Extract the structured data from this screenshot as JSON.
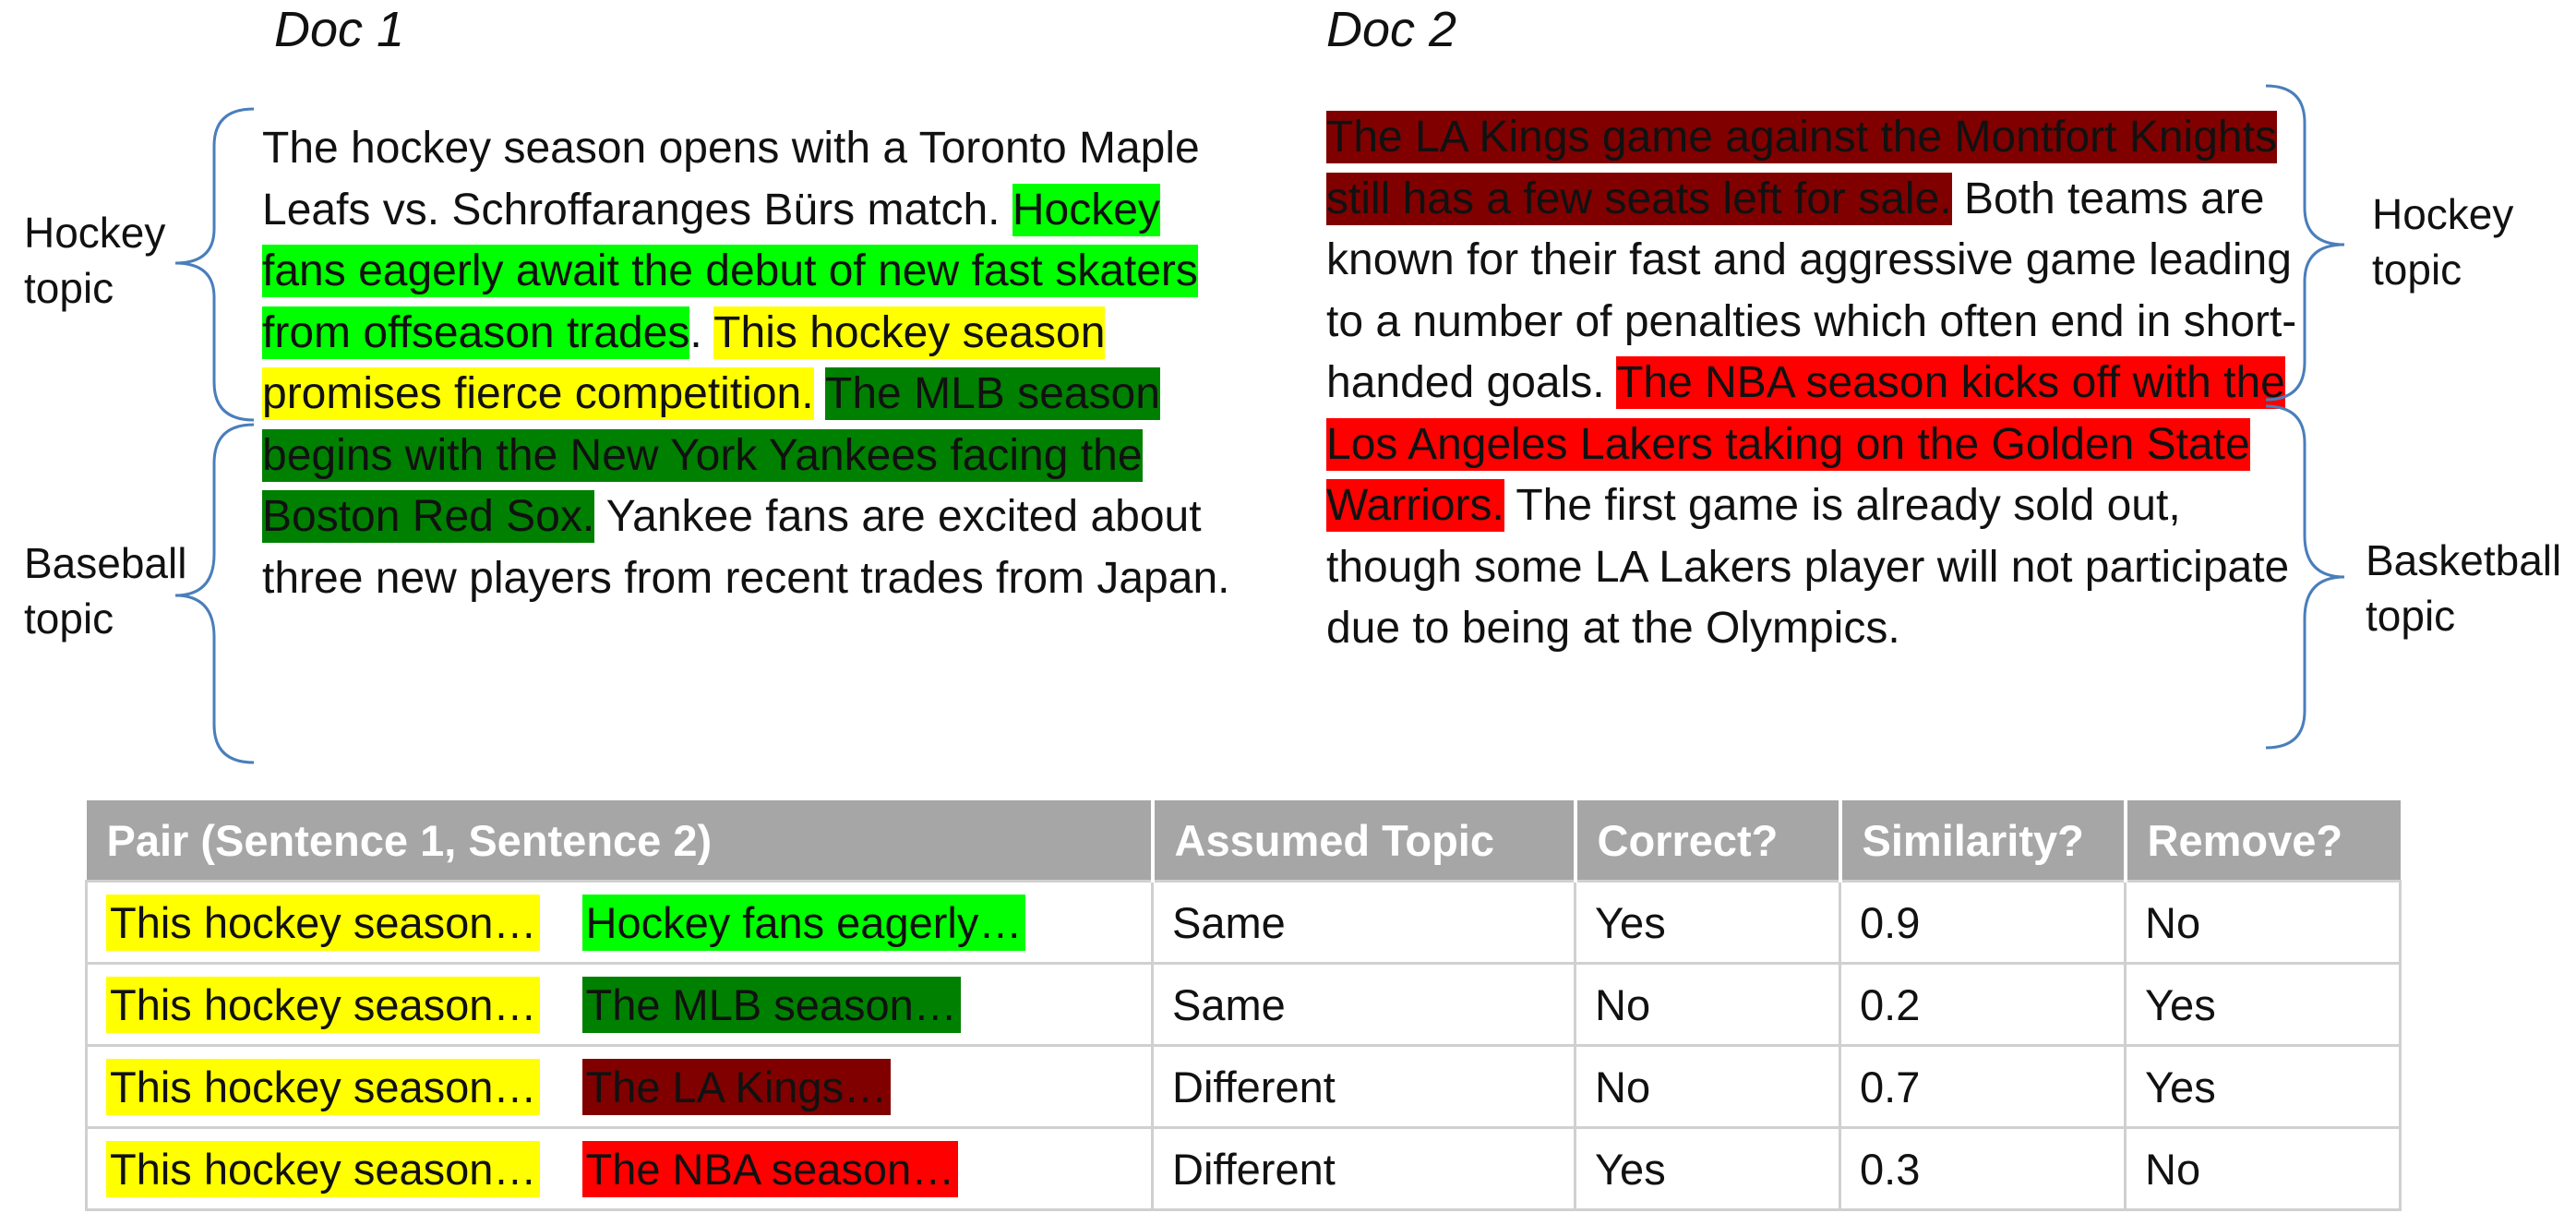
{
  "colors": {
    "yellow": "#ffff00",
    "lime": "#00ff00",
    "green": "#008000",
    "maroon": "#800000",
    "red": "#ff0000",
    "header_gray": "#a6a6a6",
    "brace_blue": "#4a7ebb"
  },
  "doc1": {
    "title": "Doc 1",
    "segments": [
      {
        "text": "The hockey season opens with a Toronto Maple Leafs vs. Schroffaranges Bürs match. ",
        "color": ""
      },
      {
        "text": "Hockey fans eagerly await the debut of new fast skaters from offseason trades",
        "color": "lime"
      },
      {
        "text": ". ",
        "color": ""
      },
      {
        "text": "This hockey season promises fierce competition.",
        "color": "yellow"
      },
      {
        "text": " ",
        "color": ""
      },
      {
        "text": "The MLB season begins with the New York Yankees facing the Boston Red Sox.",
        "color": "green"
      },
      {
        "text": " Yankee fans are excited about three new players from recent trades from Japan.",
        "color": ""
      }
    ],
    "topics": [
      "Hockey topic",
      "Baseball topic"
    ]
  },
  "doc2": {
    "title": "Doc 2",
    "segments": [
      {
        "text": "The LA Kings game against the Montfort Knights still has a few seats left for sale.",
        "color": "maroon"
      },
      {
        "text": " Both teams are known for their fast and aggressive game leading to a number of penalties which often end in short-handed goals. ",
        "color": ""
      },
      {
        "text": "The NBA season kicks off with the Los Angeles Lakers taking on the Golden State Warriors.",
        "color": "red"
      },
      {
        "text": " The first game is already sold out, though some LA Lakers player will not participate due to being at the Olympics.",
        "color": ""
      }
    ],
    "topics": [
      "Hockey topic",
      "Basketball topic"
    ]
  },
  "table": {
    "headers": [
      "Pair (Sentence 1, Sentence 2)",
      "Assumed Topic",
      "Correct?",
      "Similarity?",
      "Remove?"
    ],
    "rows": [
      {
        "s1": "This hockey season…",
        "s1_color": "yellow",
        "s2": "Hockey fans eagerly…",
        "s2_color": "lime",
        "topic": "Same",
        "correct": "Yes",
        "similarity": "0.9",
        "remove": "No"
      },
      {
        "s1": "This hockey season…",
        "s1_color": "yellow",
        "s2": "The MLB season…",
        "s2_color": "green",
        "topic": "Same",
        "correct": "No",
        "similarity": "0.2",
        "remove": "Yes"
      },
      {
        "s1": "This hockey season…",
        "s1_color": "yellow",
        "s2": "The LA Kings…",
        "s2_color": "maroon",
        "topic": "Different",
        "correct": "No",
        "similarity": "0.7",
        "remove": "Yes"
      },
      {
        "s1": "This hockey season…",
        "s1_color": "yellow",
        "s2": "The NBA season…",
        "s2_color": "red",
        "topic": "Different",
        "correct": "Yes",
        "similarity": "0.3",
        "remove": "No"
      }
    ]
  }
}
